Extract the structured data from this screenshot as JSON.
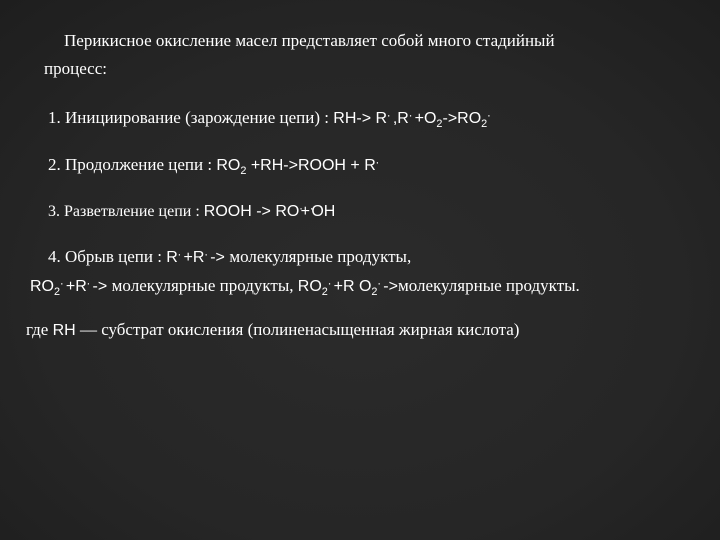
{
  "colors": {
    "text": "#ffffff",
    "bg_center": "#2b2b2b",
    "bg_edge": "#0a0a0a"
  },
  "typography": {
    "body_family": "Times New Roman",
    "chem_family": "Arial",
    "body_size_pt": 13,
    "chem_size_pt": 12
  },
  "intro": {
    "line1": "Перикисное окисление  масел представляет собой много стадийный",
    "line2": "процесс:"
  },
  "steps": {
    "s1": {
      "label": "1. Инициирование (зарождение цепи) :  ",
      "eq_parts": {
        "a": "RH-> R",
        "b": " ,R",
        "c": " +O",
        "d": "->RO"
      }
    },
    "s2": {
      "label": "2. Продолжение цепи : ",
      "eq_parts": {
        "a": "RO",
        "b": " +RH->ROOH + R"
      }
    },
    "s3": {
      "label": "3. Разветвление цепи : ",
      "eq_parts": {
        "a": "ROOH -> RO",
        "b": "+",
        "c": "OH"
      }
    },
    "s4": {
      "label": "4. Обрыв цепи : ",
      "eq_parts": {
        "a": "R",
        "b": " +R",
        "c": " ->"
      },
      "tail": "молекулярные продукты,"
    },
    "s4b": {
      "eq1": {
        "a": "RO",
        "b": " +R",
        "c": " ->"
      },
      "mid": "молекулярные продукты, ",
      "eq2": {
        "a": "RO",
        "b": " +R O",
        "c": " ->"
      },
      "tail": "молекулярные продукты."
    }
  },
  "footnote": {
    "prefix": "где ",
    "rh": "RH",
    "dash": " — ",
    "text": "субстрат окисления (полиненасыщенная жирная кислота)"
  },
  "symbols": {
    "radical": "."
  }
}
